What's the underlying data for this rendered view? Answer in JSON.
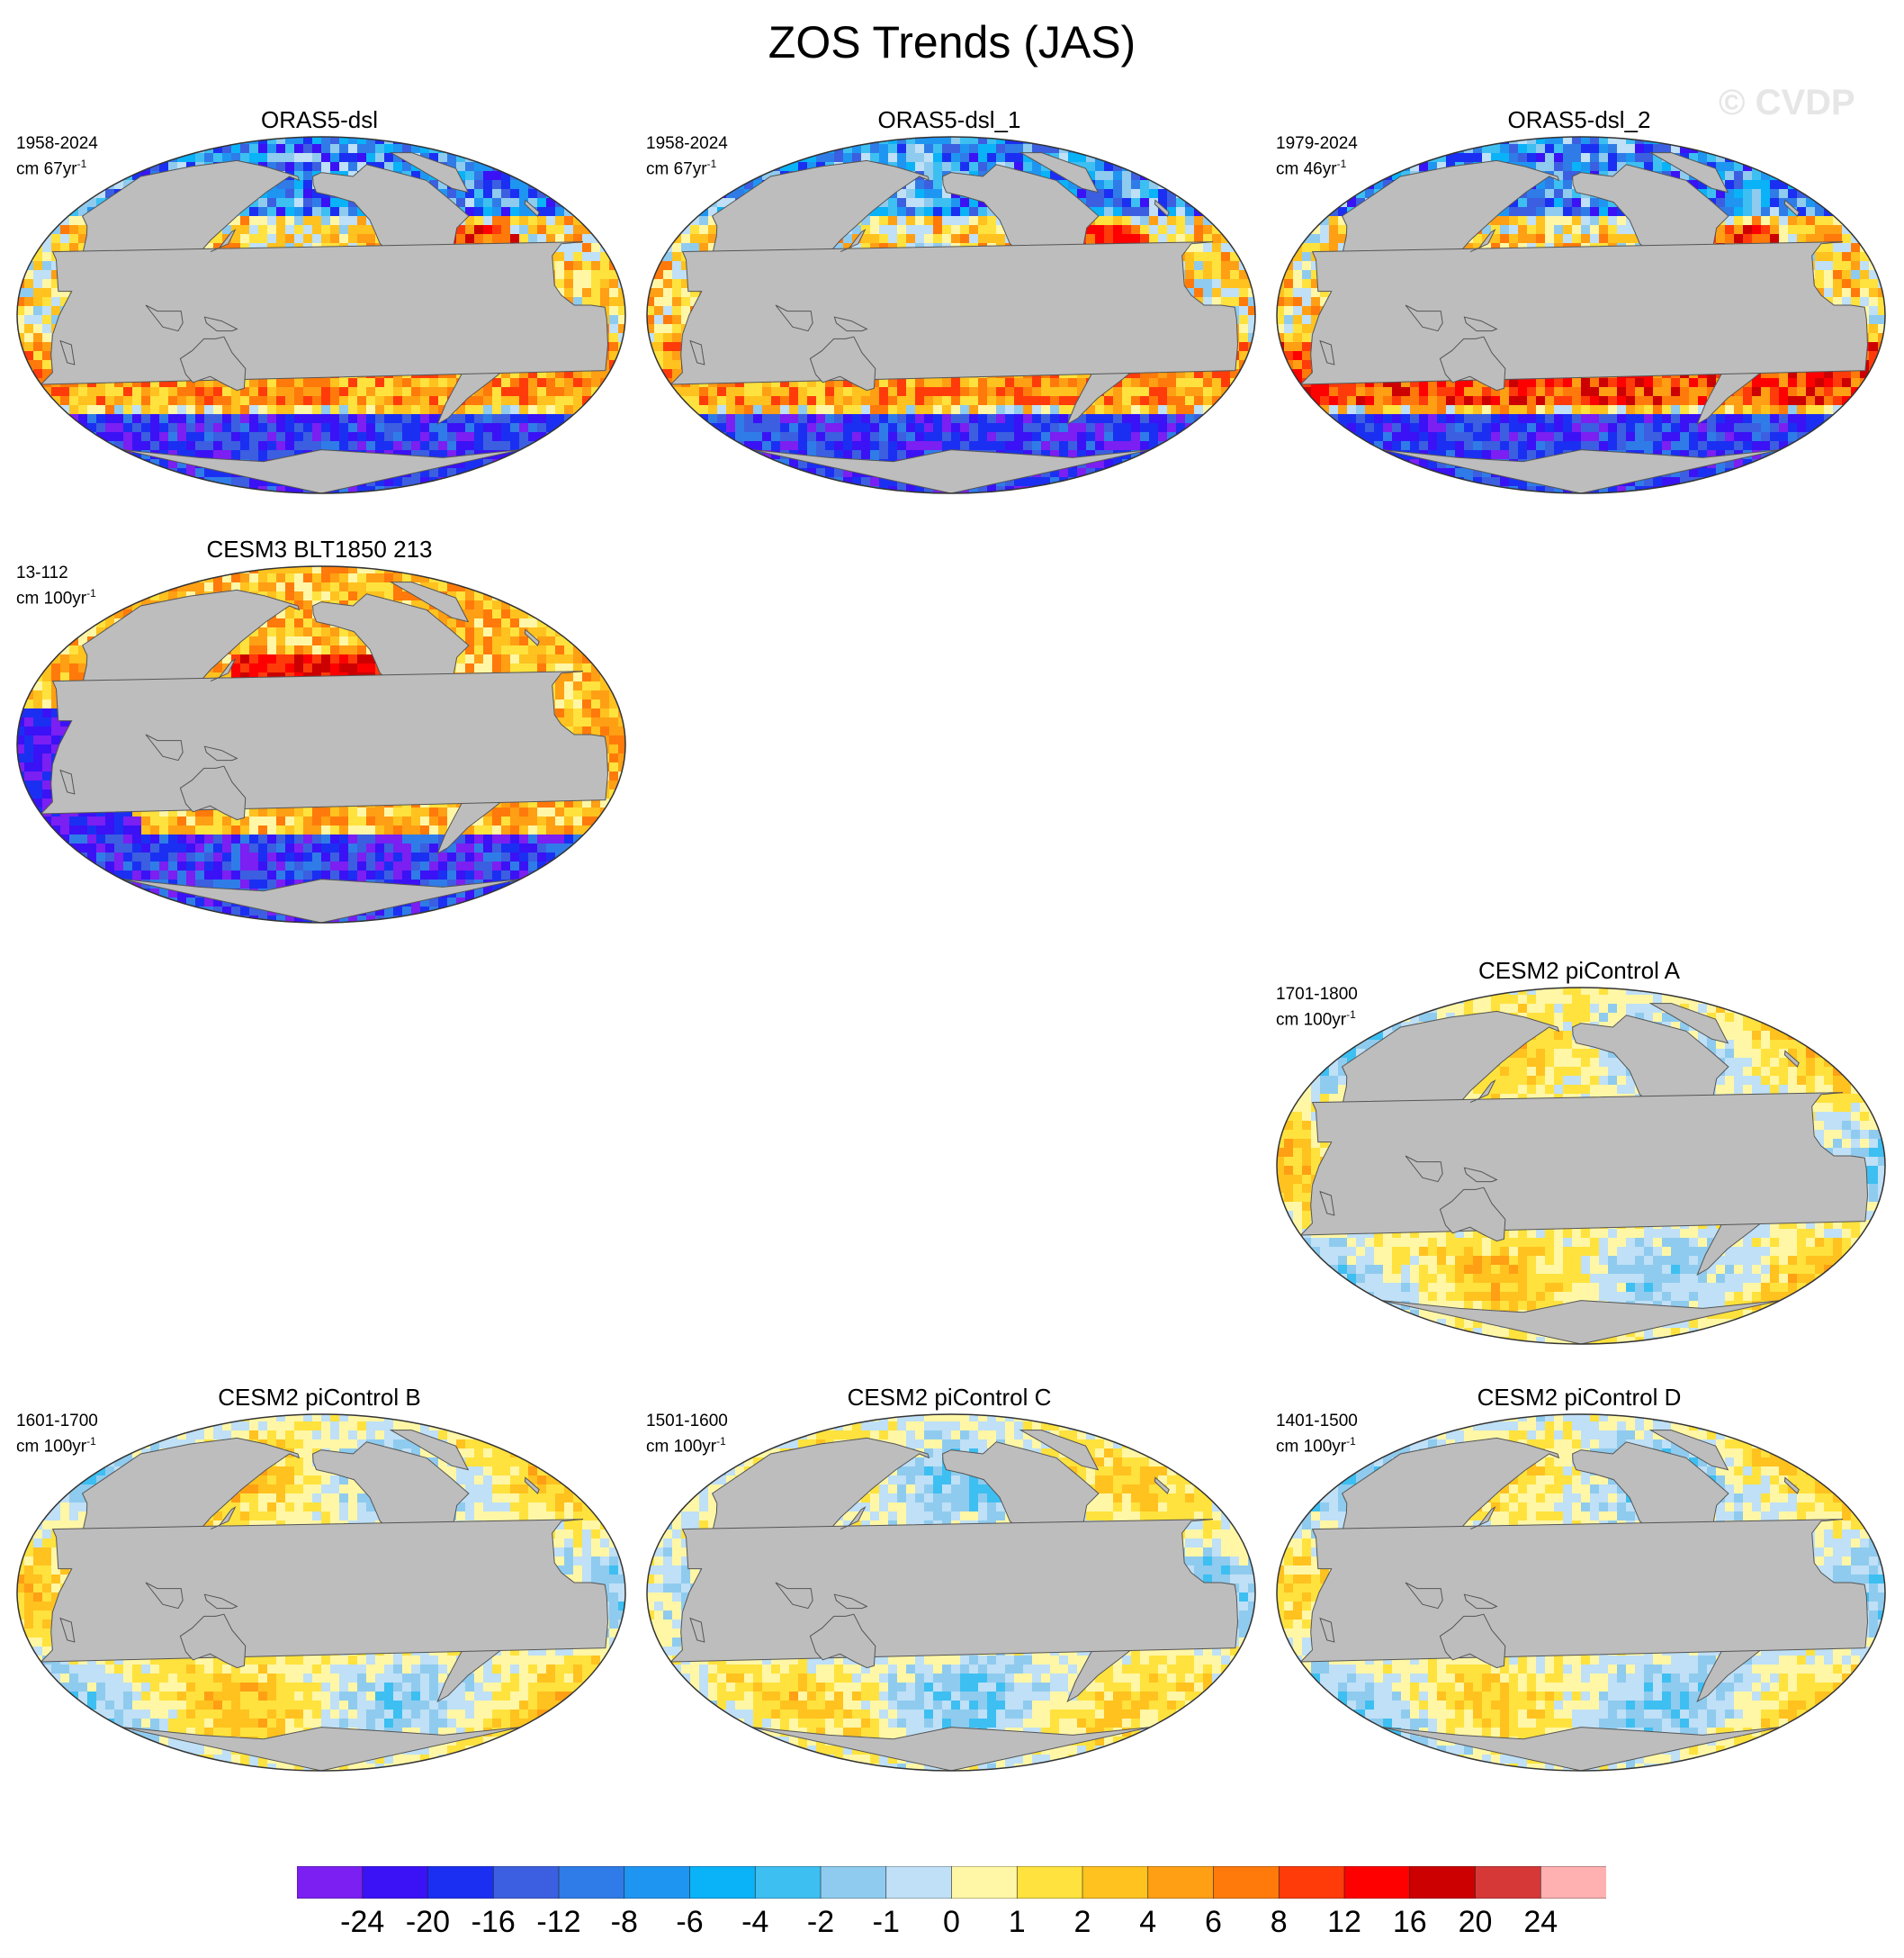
{
  "title": "ZOS Trends (JAS)",
  "watermark": "© CVDP",
  "panels": [
    {
      "title": "ORAS5-dsl",
      "period": "1958-2024",
      "units_prefix": "cm 67yr",
      "units_exp": "-1",
      "pattern": "oras"
    },
    {
      "title": "ORAS5-dsl_1",
      "period": "1958-2024",
      "units_prefix": "cm 67yr",
      "units_exp": "-1",
      "pattern": "oras"
    },
    {
      "title": "ORAS5-dsl_2",
      "period": "1979-2024",
      "units_prefix": "cm 46yr",
      "units_exp": "-1",
      "pattern": "oras2"
    },
    {
      "title": "CESM3 BLT1850 213",
      "period": "13-112",
      "units_prefix": "cm 100yr",
      "units_exp": "-1",
      "pattern": "cesm3"
    },
    {
      "title": "CESM2 piControl A",
      "period": "1701-1800",
      "units_prefix": "cm 100yr",
      "units_exp": "-1",
      "pattern": "picA"
    },
    {
      "title": "CESM2 piControl B",
      "period": "1601-1700",
      "units_prefix": "cm 100yr",
      "units_exp": "-1",
      "pattern": "picB"
    },
    {
      "title": "CESM2 piControl C",
      "period": "1501-1600",
      "units_prefix": "cm 100yr",
      "units_exp": "-1",
      "pattern": "picC"
    },
    {
      "title": "CESM2 piControl D",
      "period": "1401-1500",
      "units_prefix": "cm 100yr",
      "units_exp": "-1",
      "pattern": "picD"
    }
  ],
  "colorbar": {
    "colors": [
      "#7b1ff2",
      "#3a12f5",
      "#1b2ff2",
      "#3b5fe0",
      "#2f7ce8",
      "#1f95f2",
      "#0ab2f8",
      "#3dbff2",
      "#8fcbee",
      "#bfe0f6",
      "#fff7a6",
      "#ffe23d",
      "#ffc21f",
      "#ff9f14",
      "#ff7a0a",
      "#ff3b0a",
      "#ff0000",
      "#cc0000",
      "#d63838",
      "#ffb0b0"
    ],
    "labels": [
      "-24",
      "-20",
      "-16",
      "-12",
      "-8",
      "-6",
      "-4",
      "-2",
      "-1",
      "0",
      "1",
      "2",
      "4",
      "6",
      "8",
      "12",
      "16",
      "20",
      "24"
    ]
  }
}
